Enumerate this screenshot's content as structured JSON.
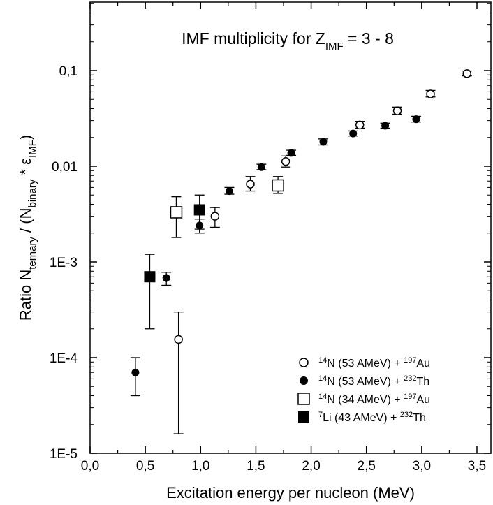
{
  "chart_data": {
    "type": "scatter",
    "title": "IMF multiplicity for Z",
    "title_sub": "IMF",
    "title_rest": " = 3 - 8",
    "xlabel": "Excitation energy per nucleon (MeV)",
    "ylabel": {
      "p1": "Ratio N",
      "p2": "ternary",
      "p3": " / (N",
      "p4": "binary",
      "p5": " * ε",
      "p6": "IMF",
      "p7": ")"
    },
    "xlim": [
      0,
      3.75
    ],
    "ylim": [
      1e-05,
      0.5
    ],
    "yscale": "log",
    "x_ticks": [
      {
        "value": 0,
        "label": "0,0"
      },
      {
        "value": 0.5,
        "label": "0,5"
      },
      {
        "value": 1.0,
        "label": "1,0"
      },
      {
        "value": 1.5,
        "label": "1,5"
      },
      {
        "value": 2.0,
        "label": "2,0"
      },
      {
        "value": 2.5,
        "label": "2,5"
      },
      {
        "value": 3.0,
        "label": "3,0"
      },
      {
        "value": 3.5,
        "label": "3,5"
      }
    ],
    "y_ticks": [
      {
        "value": 1e-05,
        "label": "1E-5"
      },
      {
        "value": 0.0001,
        "label": "1E-4"
      },
      {
        "value": 0.001,
        "label": "1E-3"
      },
      {
        "value": 0.01,
        "label": "0,01"
      },
      {
        "value": 0.1,
        "label": "0,1"
      }
    ],
    "legend_position": "bottom-right",
    "series": [
      {
        "name": "N (53 AMeV) + Au",
        "legend": {
          "sup1": "14",
          "a": "N (53 AMeV) + ",
          "sup2": "197",
          "b": "Au"
        },
        "marker": "open-circle",
        "points": [
          {
            "x": 0.8,
            "y": 0.000155,
            "lo": 1.6e-05,
            "hi": 0.0003
          },
          {
            "x": 1.13,
            "y": 0.003,
            "lo": 0.0023,
            "hi": 0.0037
          },
          {
            "x": 1.45,
            "y": 0.0065,
            "lo": 0.0055,
            "hi": 0.0078
          },
          {
            "x": 1.77,
            "y": 0.0112,
            "lo": 0.0098,
            "hi": 0.0128
          },
          {
            "x": 2.44,
            "y": 0.027,
            "lo": 0.025,
            "hi": 0.0295
          },
          {
            "x": 2.78,
            "y": 0.038,
            "lo": 0.035,
            "hi": 0.0415
          },
          {
            "x": 3.08,
            "y": 0.057,
            "lo": 0.053,
            "hi": 0.062
          },
          {
            "x": 3.41,
            "y": 0.093,
            "lo": 0.088,
            "hi": 0.099
          }
        ]
      },
      {
        "name": "N (53 AMeV) + Th",
        "legend": {
          "sup1": "14",
          "a": "N (53 AMeV) + ",
          "sup2": "232",
          "b": "Th"
        },
        "marker": "filled-circle",
        "points": [
          {
            "x": 0.41,
            "y": 7e-05,
            "lo": 4e-05,
            "hi": 0.0001
          },
          {
            "x": 0.69,
            "y": 0.00068,
            "lo": 0.00057,
            "hi": 0.00078
          },
          {
            "x": 0.99,
            "y": 0.0024,
            "lo": 0.002,
            "hi": 0.0028
          },
          {
            "x": 1.26,
            "y": 0.0055,
            "lo": 0.0051,
            "hi": 0.006
          },
          {
            "x": 1.55,
            "y": 0.0098,
            "lo": 0.0092,
            "hi": 0.0105
          },
          {
            "x": 1.82,
            "y": 0.0138,
            "lo": 0.013,
            "hi": 0.0147
          },
          {
            "x": 2.11,
            "y": 0.018,
            "lo": 0.0167,
            "hi": 0.0193
          },
          {
            "x": 2.38,
            "y": 0.022,
            "lo": 0.0207,
            "hi": 0.0234
          },
          {
            "x": 2.67,
            "y": 0.0265,
            "lo": 0.025,
            "hi": 0.0282
          },
          {
            "x": 2.95,
            "y": 0.031,
            "lo": 0.029,
            "hi": 0.0333
          }
        ]
      },
      {
        "name": "N (34 AMeV) + Au",
        "legend": {
          "sup1": "14",
          "a": "N (34 AMeV) + ",
          "sup2": "197",
          "b": "Au"
        },
        "marker": "open-square",
        "points": [
          {
            "x": 0.78,
            "y": 0.0033,
            "lo": 0.0018,
            "hi": 0.0048
          },
          {
            "x": 1.7,
            "y": 0.0063,
            "lo": 0.0052,
            "hi": 0.0078
          }
        ]
      },
      {
        "name": "Li (43 AMeV) + Th",
        "legend": {
          "sup1": "7",
          "a": "Li (43 AMeV) + ",
          "sup2": "232",
          "b": "Th"
        },
        "marker": "filled-square",
        "points": [
          {
            "x": 0.54,
            "y": 0.0007,
            "lo": 0.0002,
            "hi": 0.0012
          },
          {
            "x": 0.99,
            "y": 0.0035,
            "lo": 0.0022,
            "hi": 0.005
          }
        ]
      }
    ]
  }
}
